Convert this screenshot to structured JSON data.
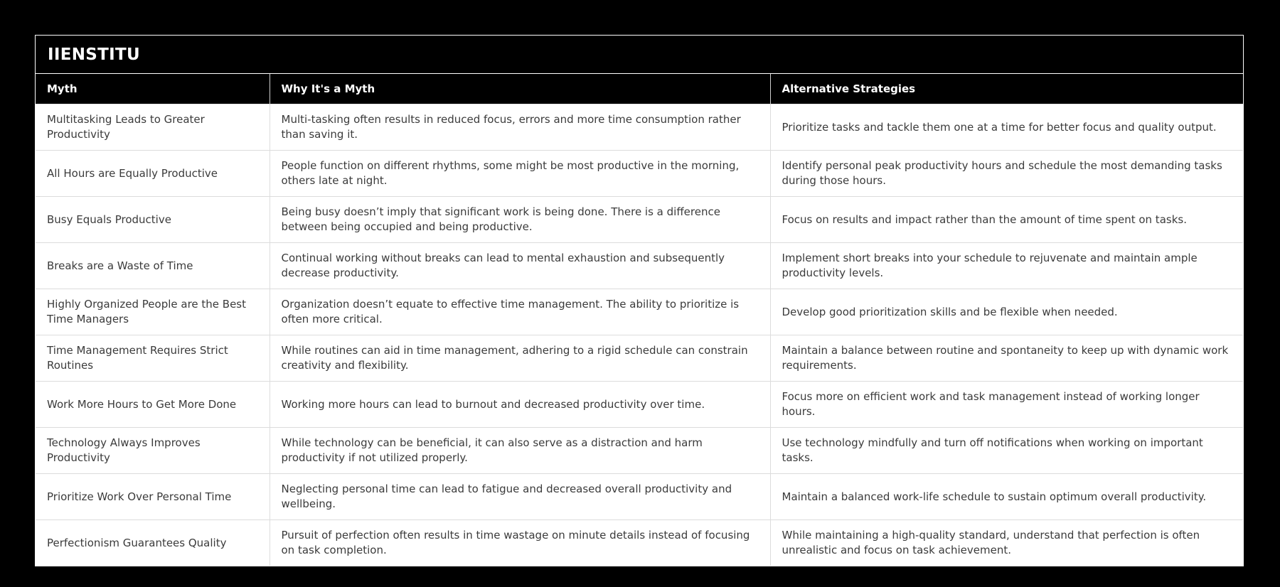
{
  "card": {
    "brand": "IIENSTITU"
  },
  "table": {
    "headers": [
      "Myth",
      "Why It's a Myth",
      "Alternative Strategies"
    ],
    "rows": [
      {
        "myth": "Multitasking Leads to Greater Productivity",
        "why": "Multi-tasking often results in reduced focus, errors and more time consumption rather than saving it.",
        "alternative": "Prioritize tasks and tackle them one at a time for better focus and quality output."
      },
      {
        "myth": "All Hours are Equally Productive",
        "why": "People function on different rhythms, some might be most productive in the morning, others late at night.",
        "alternative": "Identify personal peak productivity hours and schedule the most demanding tasks during those hours."
      },
      {
        "myth": "Busy Equals Productive",
        "why": "Being busy doesn’t imply that significant work is being done. There is a difference between being occupied and being productive.",
        "alternative": "Focus on results and impact rather than the amount of time spent on tasks."
      },
      {
        "myth": "Breaks are a Waste of Time",
        "why": "Continual working without breaks can lead to mental exhaustion and subsequently decrease productivity.",
        "alternative": "Implement short breaks into your schedule to rejuvenate and maintain ample productivity levels."
      },
      {
        "myth": "Highly Organized People are the Best Time Managers",
        "why": "Organization doesn’t equate to effective time management. The ability to prioritize is often more critical.",
        "alternative": "Develop good prioritization skills and be flexible when needed."
      },
      {
        "myth": "Time Management Requires Strict Routines",
        "why": "While routines can aid in time management, adhering to a rigid schedule can constrain creativity and flexibility.",
        "alternative": "Maintain a balance between routine and spontaneity to keep up with dynamic work requirements."
      },
      {
        "myth": "Work More Hours to Get More Done",
        "why": "Working more hours can lead to burnout and decreased productivity over time.",
        "alternative": "Focus more on efficient work and task management instead of working longer hours."
      },
      {
        "myth": "Technology Always Improves Productivity",
        "why": "While technology can be beneficial, it can also serve as a distraction and harm productivity if not utilized properly.",
        "alternative": "Use technology mindfully and turn off notifications when working on important tasks."
      },
      {
        "myth": "Prioritize Work Over Personal Time",
        "why": "Neglecting personal time can lead to fatigue and decreased overall productivity and wellbeing.",
        "alternative": "Maintain a balanced work-life schedule to sustain optimum overall productivity."
      },
      {
        "myth": "Perfectionism Guarantees Quality",
        "why": "Pursuit of perfection often results in time wastage on minute details instead of focusing on task completion.",
        "alternative": "While maintaining a high-quality standard, understand that perfection is often unrealistic and focus on task achievement."
      }
    ]
  },
  "colors": {
    "page_background": "#000000",
    "card_border": "#ffffff",
    "header_background": "#000000",
    "header_text": "#ffffff",
    "body_background": "#ffffff",
    "body_text": "#3b3b3b",
    "grid_line": "#dcdcdc"
  }
}
